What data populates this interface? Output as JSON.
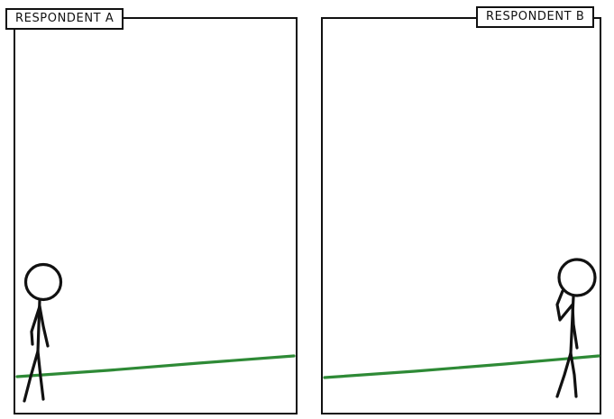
{
  "panels": [
    {
      "caption": "RESPONDENT A"
    },
    {
      "caption": "RESPONDENT B"
    }
  ],
  "colors": {
    "ink": "#111111",
    "ground_line": "#2e8a36",
    "background": "#ffffff"
  }
}
